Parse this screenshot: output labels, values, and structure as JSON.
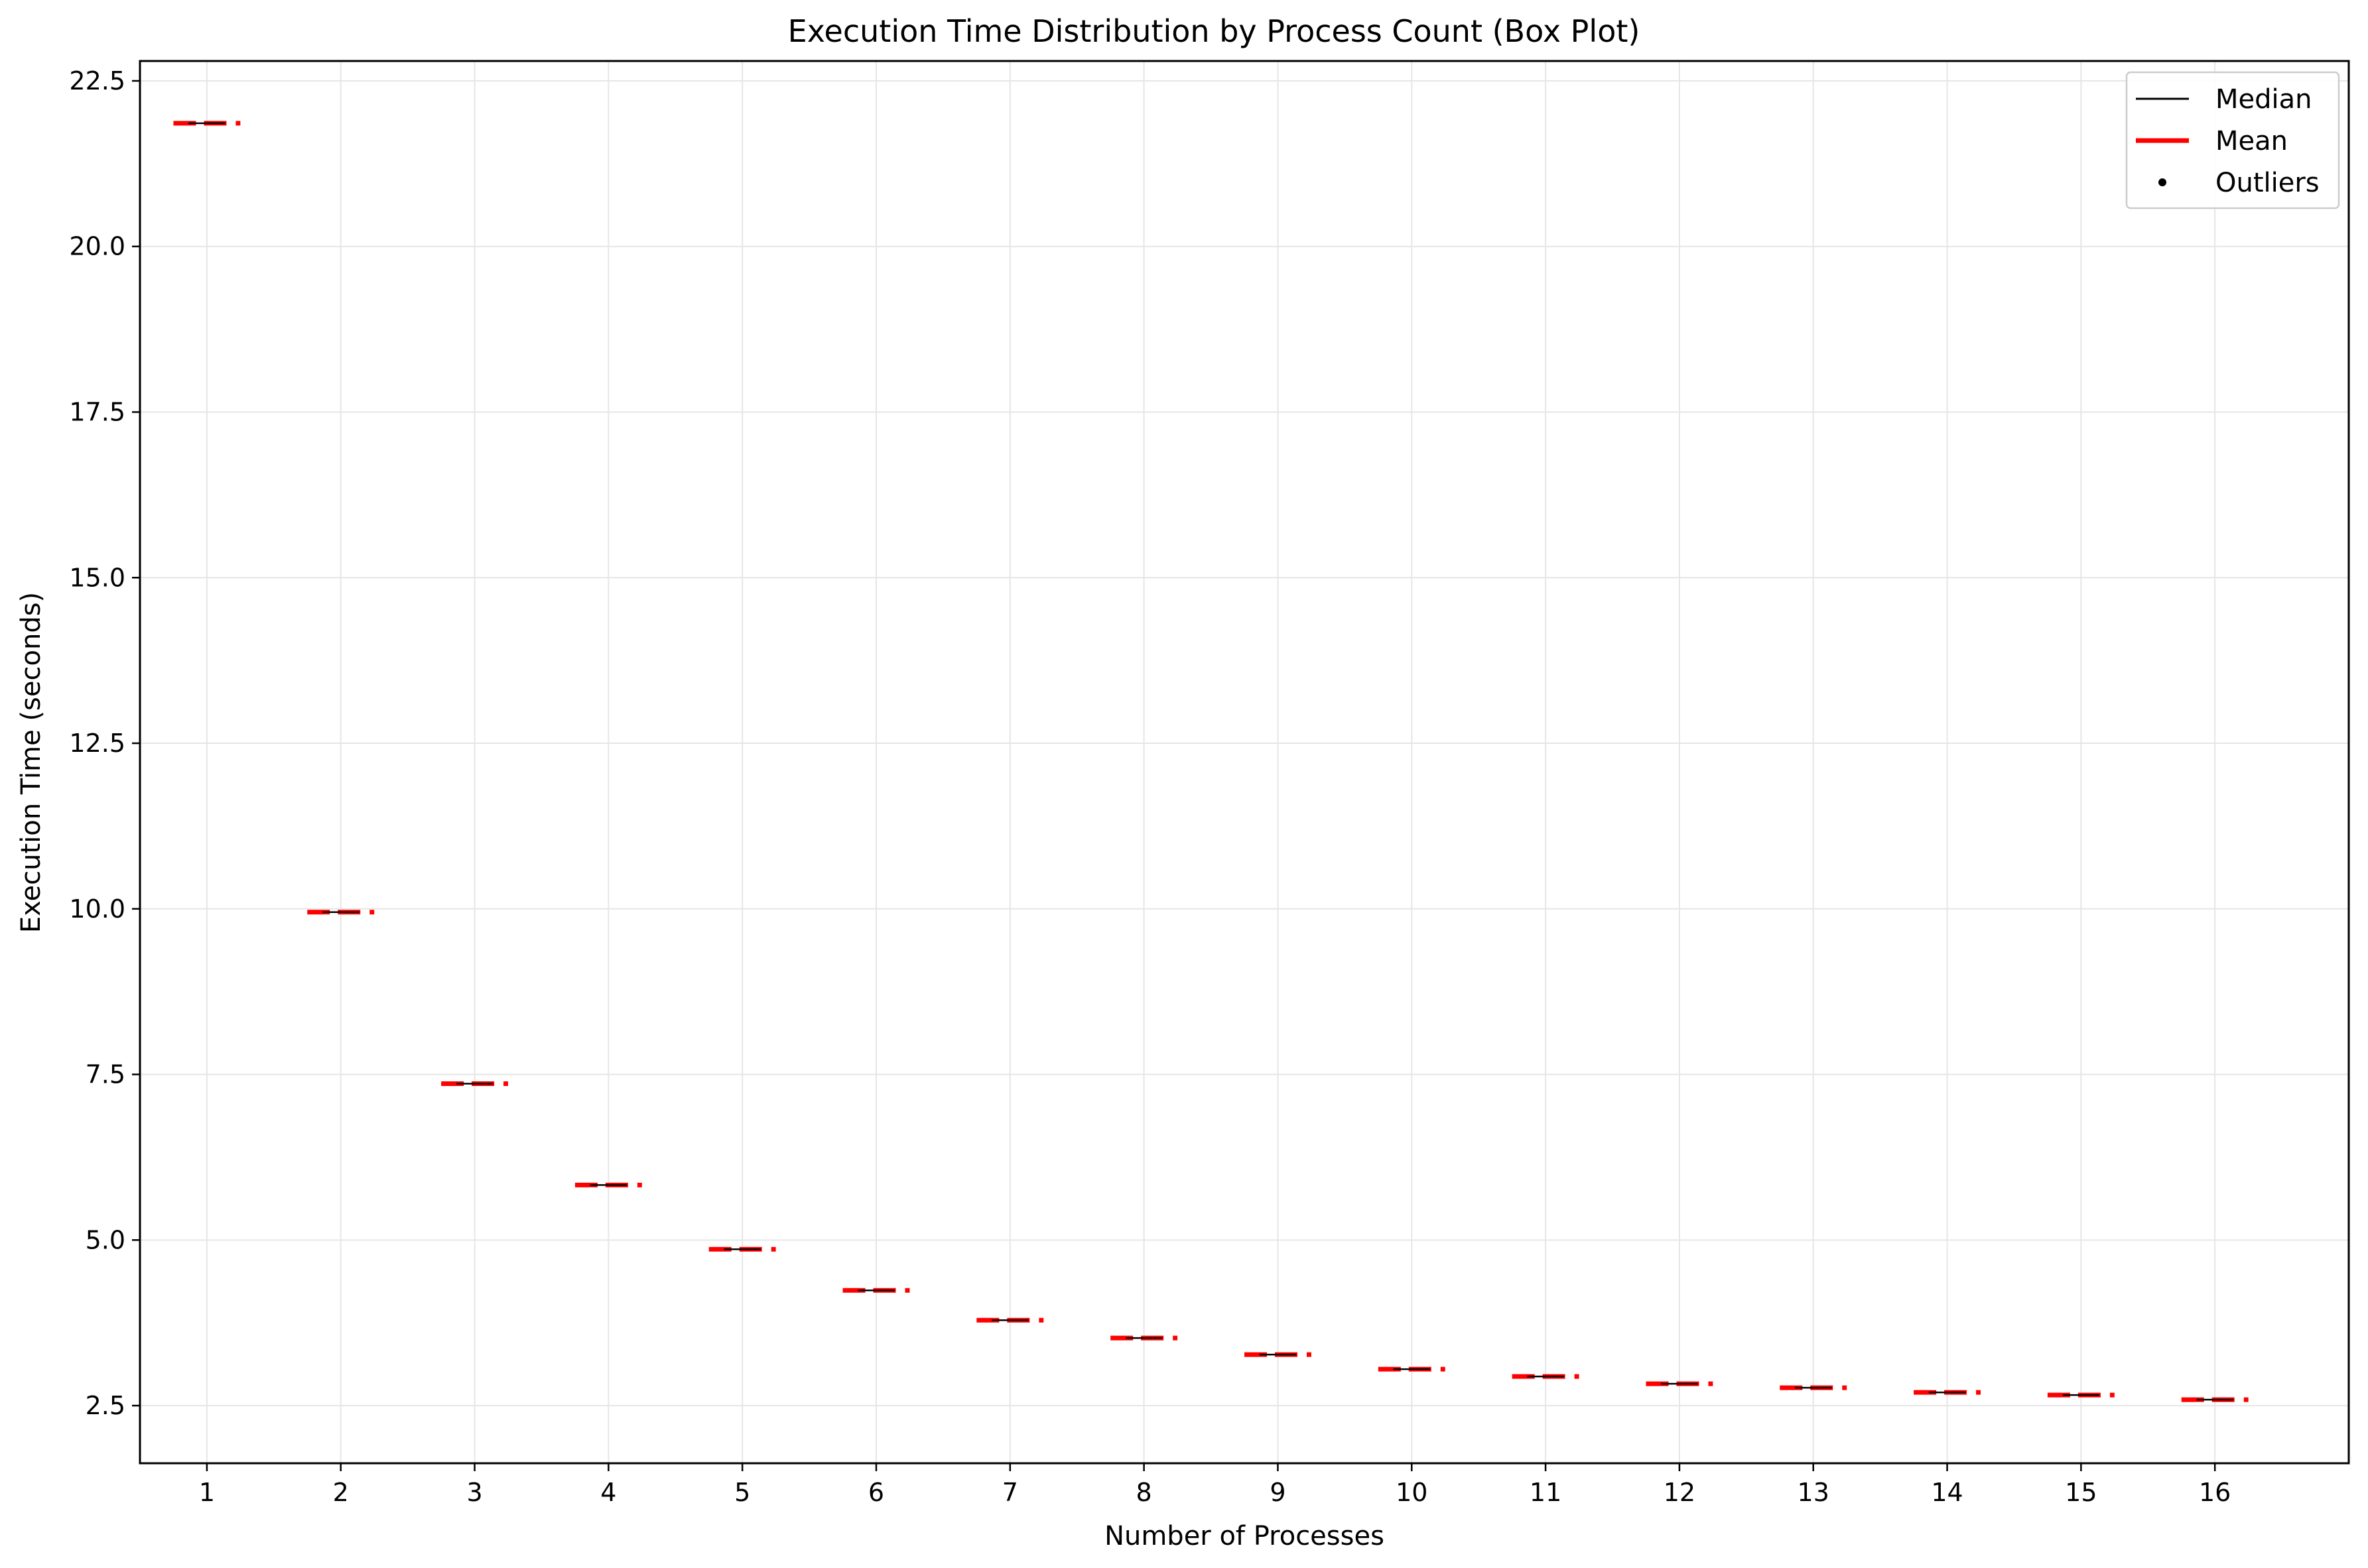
{
  "chart_data": {
    "type": "box",
    "title": "Execution Time Distribution by Process Count (Box Plot)",
    "xlabel": "Number of Processes",
    "ylabel": "Execution Time (seconds)",
    "categories": [
      "1",
      "2",
      "3",
      "4",
      "5",
      "6",
      "7",
      "8",
      "9",
      "10",
      "11",
      "12",
      "13",
      "14",
      "15",
      "16"
    ],
    "medians": [
      21.86,
      9.95,
      7.36,
      5.83,
      4.86,
      4.24,
      3.79,
      3.52,
      3.27,
      3.05,
      2.94,
      2.83,
      2.77,
      2.7,
      2.66,
      2.59
    ],
    "means": [
      21.86,
      9.95,
      7.36,
      5.83,
      4.86,
      4.24,
      3.79,
      3.52,
      3.27,
      3.05,
      2.94,
      2.83,
      2.77,
      2.7,
      2.66,
      2.59
    ],
    "ylim": [
      1.63,
      22.8
    ],
    "yticks": [
      "2.5",
      "5.0",
      "7.5",
      "10.0",
      "12.5",
      "15.0",
      "17.5",
      "20.0",
      "22.5"
    ],
    "grid": true,
    "legend_position": "top-right",
    "legend": [
      {
        "label": "Median",
        "style": "black-line"
      },
      {
        "label": "Mean",
        "style": "red-line"
      },
      {
        "label": "Outliers",
        "style": "black-dot"
      }
    ],
    "colors": {
      "median": "#000000",
      "mean": "#ff0000",
      "grid": "#e6e6e6"
    }
  }
}
